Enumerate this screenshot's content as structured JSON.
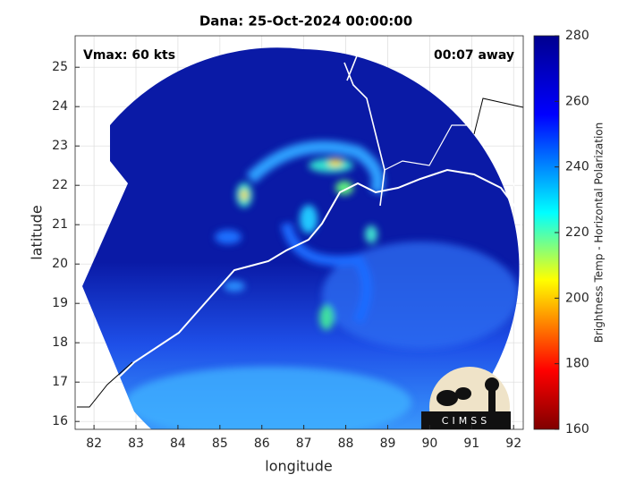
{
  "chart_data": {
    "type": "map",
    "title": "Dana: 25-Oct-2024 00:00:00",
    "x_label": "longitude",
    "y_label": "latitude",
    "annotations": [
      "Vmax: 60 kts",
      "00:07 away"
    ],
    "xlim": [
      81.55,
      92.23
    ],
    "xticks": [
      82,
      83,
      84,
      85,
      86,
      87,
      88,
      89,
      90,
      91,
      92
    ],
    "ylim": [
      15.8,
      25.8
    ],
    "yticks": [
      16,
      17,
      18,
      19,
      20,
      21,
      22,
      23,
      24,
      25
    ],
    "grid": true,
    "colorbar": {
      "label": "Brightness Temp - Horizontal Polarization",
      "clim": [
        160,
        280
      ],
      "ticks": [
        160,
        180,
        200,
        220,
        240,
        260,
        280
      ]
    },
    "logo": "CIMSS"
  }
}
